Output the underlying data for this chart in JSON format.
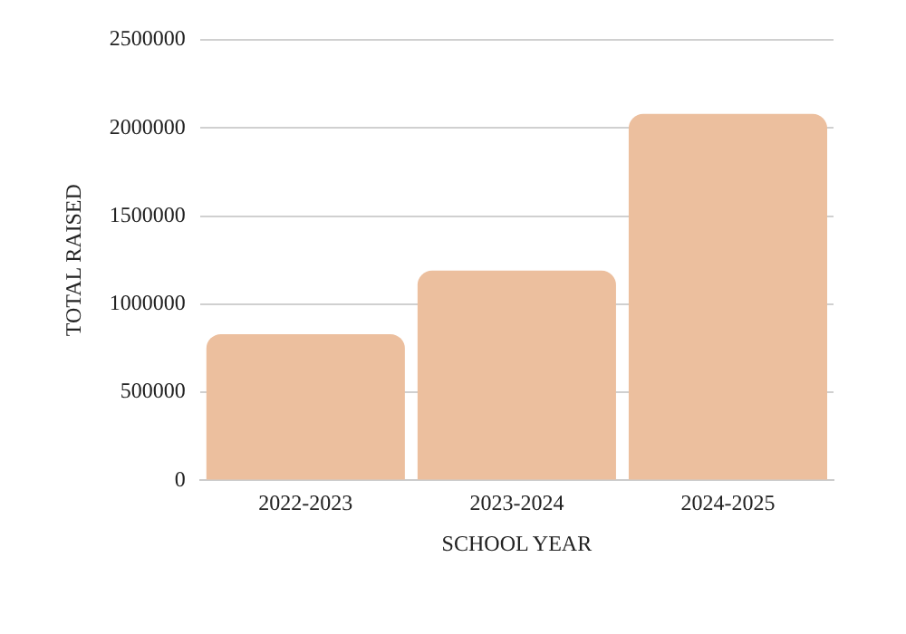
{
  "chart_data": {
    "type": "bar",
    "xlabel": "SCHOOL YEAR",
    "ylabel": "TOTAL RAISED",
    "categories": [
      "2022-2023",
      "2023-2024",
      "2024-2025"
    ],
    "values": [
      830000,
      1190000,
      2080000
    ],
    "color": "#ecbf9e",
    "ylim": [
      0,
      2500000
    ],
    "yticks": [
      0,
      500000,
      1000000,
      1500000,
      2000000,
      2500000
    ],
    "grid": "y",
    "legend": false
  }
}
